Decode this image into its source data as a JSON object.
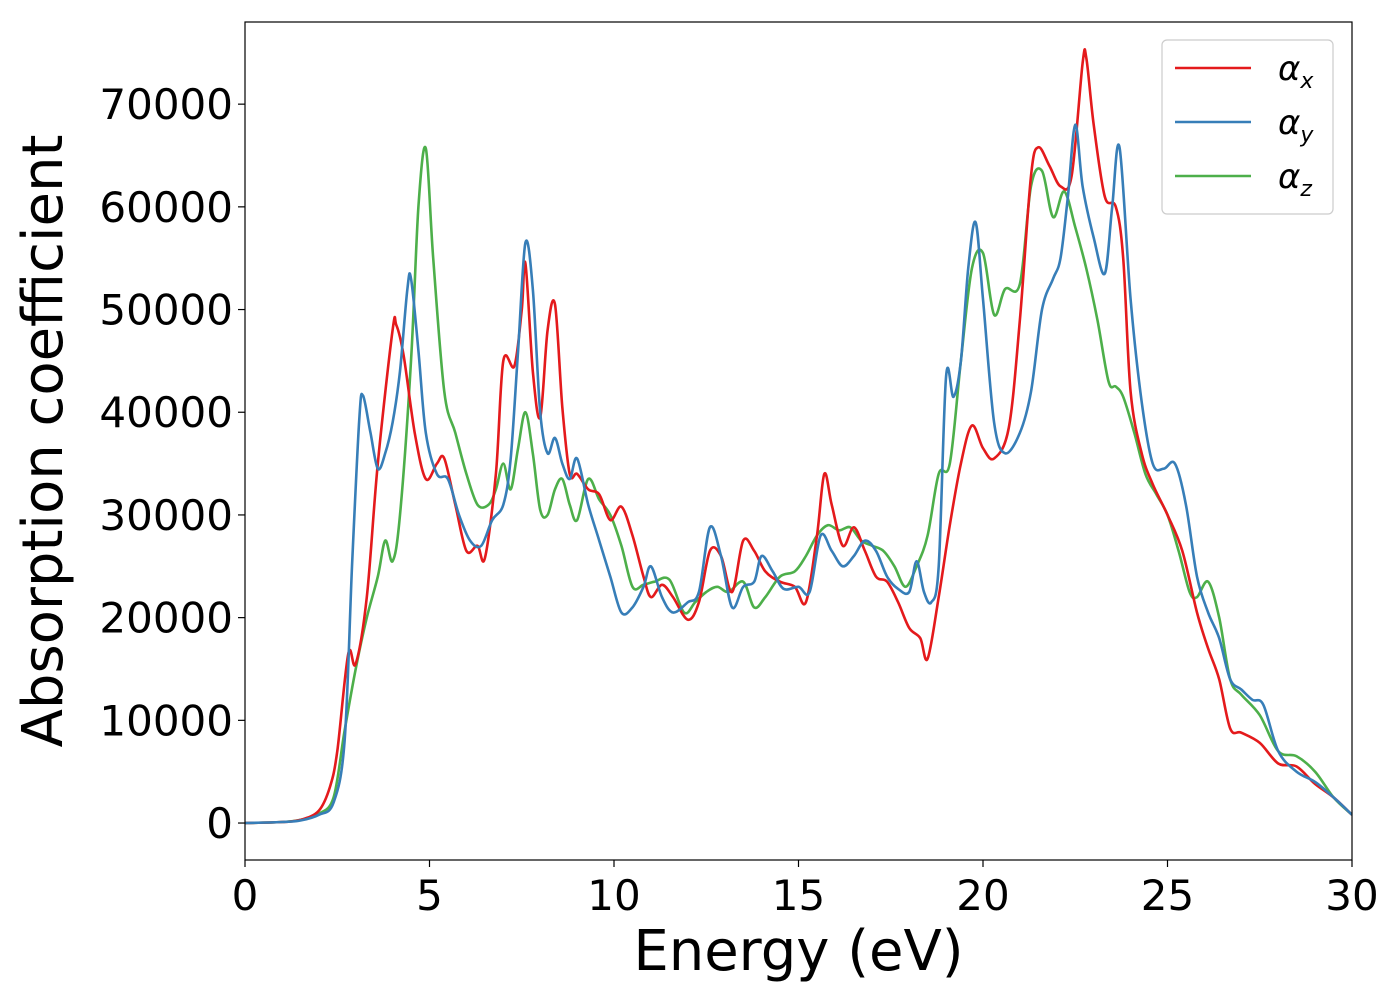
{
  "chart_data": {
    "type": "line",
    "title": "",
    "xlabel": "Energy (eV)",
    "ylabel": "Absorption coefficient",
    "xlim": [
      0,
      30
    ],
    "ylim": [
      -3600,
      78000
    ],
    "xticks": [
      0,
      5,
      10,
      15,
      20,
      25,
      30
    ],
    "yticks": [
      0,
      10000,
      20000,
      30000,
      40000,
      50000,
      60000,
      70000
    ],
    "grid": false,
    "legend_position": "top-right",
    "series": [
      {
        "name": "α_x",
        "symbol": "α",
        "subscript": "x",
        "color": "#e41a1c",
        "x": [
          0,
          1,
          1.5,
          2,
          2.3,
          2.5,
          2.8,
          3.0,
          3.3,
          3.6,
          4.0,
          4.1,
          4.3,
          4.6,
          4.9,
          5.2,
          5.4,
          5.7,
          6.0,
          6.3,
          6.5,
          6.8,
          7.0,
          7.3,
          7.5,
          7.6,
          7.8,
          8.0,
          8.2,
          8.4,
          8.6,
          8.8,
          9.0,
          9.3,
          9.6,
          9.9,
          10.2,
          10.5,
          10.8,
          11.0,
          11.3,
          11.6,
          12.0,
          12.3,
          12.6,
          12.9,
          13.2,
          13.5,
          13.8,
          14.1,
          14.5,
          14.9,
          15.2,
          15.5,
          15.7,
          15.9,
          16.2,
          16.5,
          16.8,
          17.1,
          17.4,
          17.7,
          18.0,
          18.3,
          18.5,
          18.8,
          19.1,
          19.4,
          19.7,
          20.0,
          20.3,
          20.7,
          21.0,
          21.3,
          21.5,
          21.8,
          22.1,
          22.4,
          22.7,
          22.8,
          23.0,
          23.3,
          23.6,
          23.8,
          24.0,
          24.3,
          24.6,
          25.0,
          25.4,
          25.8,
          26.1,
          26.4,
          26.7,
          27.0,
          27.5,
          28.0,
          28.5,
          29.0,
          29.5,
          30.0
        ],
        "y": [
          0,
          100,
          300,
          1200,
          3500,
          7000,
          16500,
          15500,
          22000,
          35000,
          48000,
          48500,
          45500,
          38000,
          33500,
          35000,
          35500,
          31000,
          26500,
          27000,
          25800,
          34000,
          45000,
          44500,
          50000,
          54500,
          44000,
          39500,
          48000,
          50500,
          40500,
          34000,
          34000,
          32500,
          32000,
          29500,
          30800,
          28000,
          24000,
          22000,
          23200,
          22000,
          19800,
          21500,
          26500,
          26000,
          22500,
          27500,
          26500,
          24500,
          23500,
          23000,
          21500,
          28000,
          34000,
          31000,
          27000,
          28800,
          26500,
          24000,
          23500,
          21500,
          19000,
          18000,
          16000,
          22000,
          29000,
          35000,
          38700,
          36500,
          35500,
          38500,
          49000,
          63000,
          65800,
          64000,
          62000,
          63000,
          74000,
          74500,
          68000,
          61000,
          60000,
          55000,
          42000,
          36000,
          33000,
          30000,
          26500,
          20500,
          17000,
          14000,
          9200,
          8800,
          7800,
          5800,
          5500,
          3800,
          2500,
          800
        ]
      },
      {
        "name": "α_y",
        "symbol": "α",
        "subscript": "y",
        "color": "#377eb8",
        "x": [
          0,
          1,
          1.5,
          2,
          2.4,
          2.7,
          2.9,
          3.1,
          3.2,
          3.4,
          3.6,
          3.8,
          4.0,
          4.2,
          4.4,
          4.5,
          4.7,
          4.9,
          5.2,
          5.5,
          5.8,
          6.1,
          6.4,
          6.7,
          7.0,
          7.2,
          7.4,
          7.6,
          7.8,
          8.0,
          8.2,
          8.4,
          8.6,
          8.8,
          9.0,
          9.3,
          9.6,
          9.9,
          10.2,
          10.5,
          10.8,
          11.0,
          11.3,
          11.6,
          12.0,
          12.3,
          12.6,
          12.9,
          13.2,
          13.5,
          13.8,
          14.0,
          14.3,
          14.6,
          15.0,
          15.3,
          15.6,
          15.9,
          16.2,
          16.5,
          16.8,
          17.1,
          17.4,
          17.7,
          18.0,
          18.2,
          18.4,
          18.6,
          18.8,
          19.0,
          19.2,
          19.4,
          19.6,
          19.8,
          20.0,
          20.3,
          20.6,
          21.0,
          21.3,
          21.6,
          21.9,
          22.1,
          22.3,
          22.5,
          22.7,
          23.0,
          23.3,
          23.5,
          23.7,
          24.0,
          24.3,
          24.6,
          24.9,
          25.2,
          25.5,
          25.8,
          26.1,
          26.4,
          26.7,
          27.0,
          27.3,
          27.6,
          28.0,
          28.5,
          29.0,
          29.5,
          30.0
        ],
        "y": [
          0,
          100,
          250,
          800,
          2000,
          8000,
          25000,
          39500,
          41600,
          38000,
          34500,
          36000,
          39000,
          44000,
          52000,
          53000,
          46000,
          38000,
          34000,
          33500,
          30000,
          27500,
          27000,
          29500,
          31000,
          35500,
          46000,
          56500,
          52000,
          40000,
          36000,
          37500,
          35000,
          33500,
          35500,
          31000,
          27500,
          24000,
          20500,
          21000,
          23000,
          25000,
          22000,
          20500,
          21500,
          22500,
          28800,
          26000,
          21000,
          23000,
          23500,
          26000,
          24500,
          22800,
          23000,
          22500,
          28000,
          26500,
          25000,
          26000,
          27500,
          26500,
          24000,
          22800,
          22500,
          25500,
          22500,
          21500,
          25000,
          43500,
          41500,
          45000,
          54000,
          58500,
          51000,
          39000,
          36000,
          38000,
          42000,
          50000,
          53000,
          55000,
          61000,
          68000,
          62000,
          57000,
          53500,
          60000,
          65800,
          51000,
          41000,
          35000,
          34500,
          35000,
          31000,
          24000,
          20500,
          18000,
          14000,
          13000,
          12000,
          11500,
          7000,
          5000,
          4000,
          2500,
          800
        ]
      },
      {
        "name": "α_z",
        "symbol": "α",
        "subscript": "z",
        "color": "#4daf4a",
        "x": [
          0,
          1,
          1.5,
          2,
          2.4,
          2.7,
          3.0,
          3.3,
          3.6,
          3.8,
          4.0,
          4.2,
          4.5,
          4.7,
          4.9,
          5.1,
          5.4,
          5.7,
          6.0,
          6.3,
          6.6,
          6.8,
          7.0,
          7.2,
          7.4,
          7.6,
          7.8,
          8.0,
          8.2,
          8.4,
          8.6,
          8.8,
          9.0,
          9.3,
          9.6,
          9.9,
          10.2,
          10.5,
          10.8,
          11.1,
          11.5,
          11.9,
          12.2,
          12.5,
          12.8,
          13.1,
          13.5,
          13.8,
          14.1,
          14.5,
          14.9,
          15.2,
          15.5,
          15.8,
          16.1,
          16.4,
          16.7,
          17.0,
          17.3,
          17.6,
          17.9,
          18.2,
          18.5,
          18.8,
          19.1,
          19.4,
          19.7,
          20.0,
          20.3,
          20.6,
          21.0,
          21.3,
          21.6,
          21.9,
          22.2,
          22.5,
          22.8,
          23.1,
          23.4,
          23.6,
          23.8,
          24.1,
          24.4,
          24.7,
          25.0,
          25.3,
          25.6,
          25.8,
          26.1,
          26.4,
          26.7,
          27.0,
          27.5,
          28.0,
          28.5,
          29.0,
          29.5,
          30.0
        ],
        "y": [
          0,
          100,
          300,
          900,
          2500,
          9000,
          15000,
          20000,
          24000,
          27500,
          25500,
          30000,
          45000,
          60000,
          65700,
          55000,
          42000,
          38000,
          34000,
          31000,
          31000,
          32500,
          35000,
          32500,
          36500,
          40000,
          36000,
          30500,
          30000,
          32500,
          33500,
          31000,
          29500,
          33500,
          31500,
          30000,
          27000,
          23000,
          23200,
          23500,
          23700,
          20500,
          21500,
          22500,
          23000,
          22500,
          23500,
          21000,
          22000,
          24000,
          24500,
          26000,
          28000,
          29000,
          28500,
          28800,
          27500,
          27000,
          26500,
          25000,
          23000,
          25000,
          28000,
          34000,
          35000,
          45000,
          54000,
          55500,
          49500,
          52000,
          52500,
          62000,
          63500,
          59000,
          61500,
          58000,
          54000,
          49000,
          43000,
          42500,
          41500,
          38000,
          34000,
          32000,
          30000,
          26500,
          22500,
          22000,
          23500,
          20000,
          14000,
          12500,
          10500,
          7000,
          6500,
          5000,
          2500,
          800
        ]
      }
    ]
  }
}
